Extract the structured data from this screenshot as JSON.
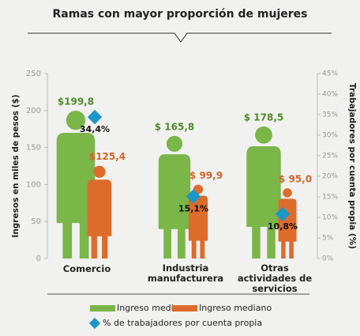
{
  "chart_data": {
    "type": "bar",
    "title": "Ramas con mayor proporción de mujeres",
    "y_label": "Ingresos en miles de pesos ($)",
    "y2_label": "Trabajadores por cuenta propia (%)",
    "categories": [
      "Comercio",
      "Industria manufacturera",
      "Otras actividades de servicios"
    ],
    "series": [
      {
        "name": "Ingreso medio",
        "color": "#7ab648",
        "values": [
          199.8,
          165.8,
          178.5
        ],
        "value_labels": [
          "$199,8",
          "$ 165,8",
          "$ 178,5"
        ]
      },
      {
        "name": "Ingreso mediano",
        "color": "#dd6b2c",
        "values": [
          125.4,
          99.9,
          95.0
        ],
        "value_labels": [
          "$125,4",
          "$ 99,9",
          "$ 95,0"
        ]
      },
      {
        "name": "% de trabajadores por cuenta propia",
        "color": "#1b97c9",
        "axis": "y2",
        "values": [
          34.4,
          15.1,
          10.8
        ],
        "value_labels": [
          "34,4%",
          "15,1%",
          "10,8%"
        ]
      }
    ],
    "ylim": [
      0,
      250
    ],
    "yticks": [
      0,
      50,
      100,
      150,
      200,
      250
    ],
    "y2lim": [
      0,
      45
    ],
    "y2ticks": [
      {
        "value": 0,
        "label": "0%"
      },
      {
        "value": 5,
        "label": "5%"
      },
      {
        "value": 10,
        "label": "10%"
      },
      {
        "value": 15,
        "label": "15%"
      },
      {
        "value": 20,
        "label": "20%"
      },
      {
        "value": 25,
        "label": "25%"
      },
      {
        "value": 30,
        "label": "30%"
      },
      {
        "value": 35,
        "label": "35%"
      },
      {
        "value": 40,
        "label": "40%"
      },
      {
        "value": 45,
        "label": "45%"
      }
    ]
  }
}
